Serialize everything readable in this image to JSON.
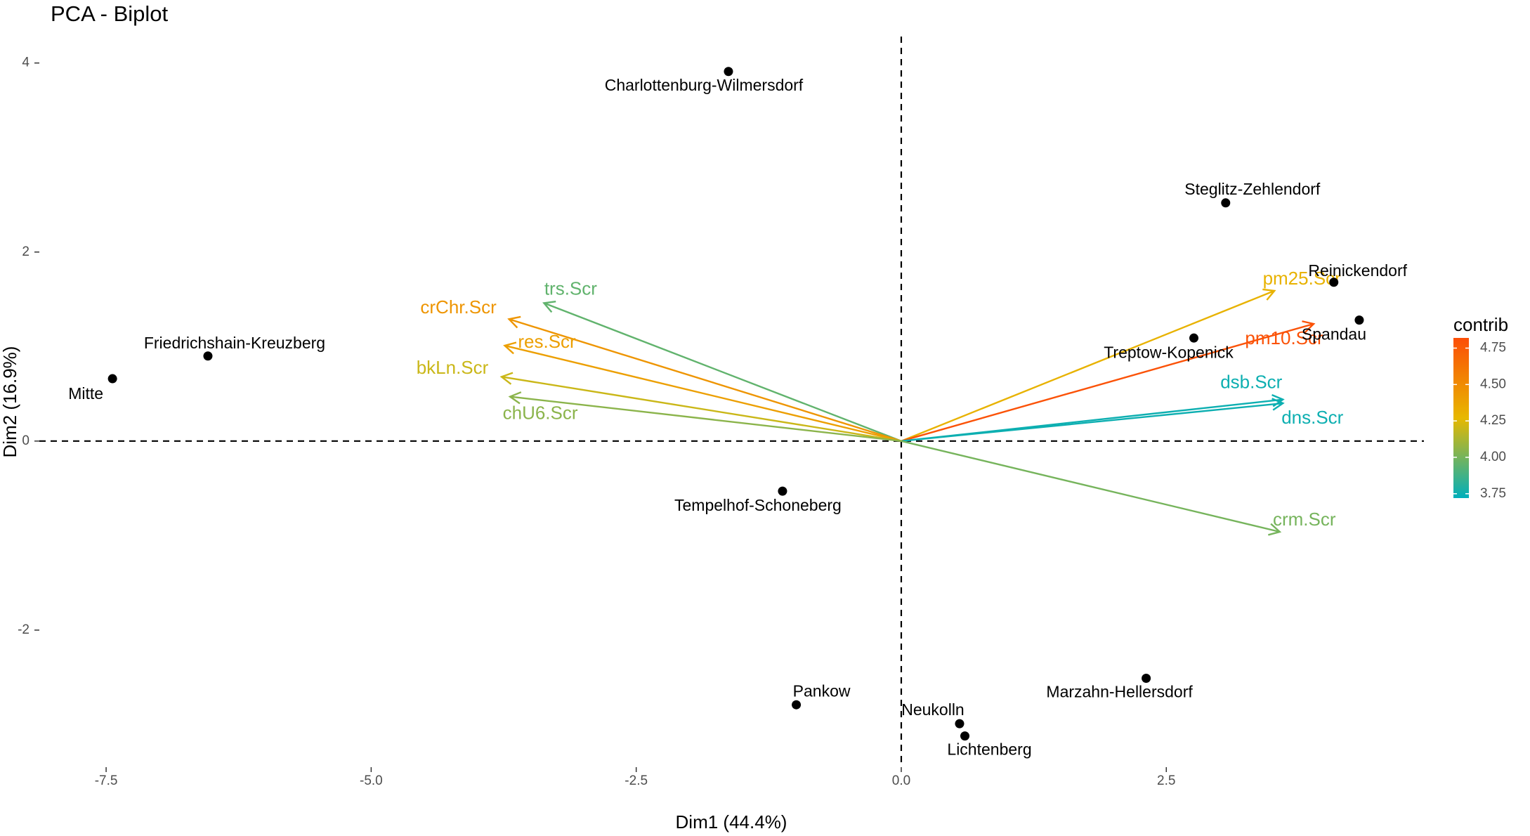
{
  "chart_data": {
    "type": "biplot",
    "title": "PCA - Biplot",
    "x_label": "Dim1 (44.4%)",
    "y_label": "Dim2 (16.9%)",
    "xlim": [
      -8.13,
      4.93
    ],
    "ylim": [
      -3.45,
      4.28
    ],
    "xticks": [
      -7.5,
      {
        "value": -5,
        "label": "-5.0"
      },
      -2.5,
      {
        "value": 0,
        "label": "0.0"
      },
      2.5
    ],
    "yticks": [
      -2,
      0,
      2,
      4
    ],
    "point_color": "#000000",
    "individuals": {
      "names": [
        "Charlottenburg-Wilmersdorf",
        "Steglitz-Zehlendorf",
        "Reinickendorf",
        "Spandau",
        "Treptow-Kopenick",
        "Friedrichshain-Kreuzberg",
        "Mitte",
        "Tempelhof-Schoneberg",
        "Marzahn-Hellersdorf",
        "Pankow",
        "Neukolln",
        "Lichtenberg"
      ],
      "x": [
        -1.63,
        3.06,
        4.08,
        4.32,
        2.76,
        -6.54,
        -7.44,
        -1.12,
        2.31,
        -0.99,
        0.55,
        0.6
      ],
      "y": [
        3.91,
        2.52,
        1.68,
        1.28,
        1.09,
        0.9,
        0.66,
        -0.53,
        -2.51,
        -2.79,
        -2.99,
        -3.12
      ]
    },
    "variables": {
      "names": [
        "pm25.Scr",
        "pm10.Scr",
        "dsb.Scr",
        "dns.Scr",
        "crm.Scr",
        "trs.Scr",
        "crChr.Scr",
        "res.Scr",
        "bkLn.Scr",
        "chU6.Scr"
      ],
      "x": [
        3.52,
        3.89,
        3.6,
        3.6,
        3.57,
        -3.37,
        -3.7,
        -3.74,
        -3.77,
        -3.69
      ],
      "y": [
        1.59,
        1.24,
        0.44,
        0.4,
        -0.96,
        1.46,
        1.29,
        1.01,
        0.68,
        0.47
      ],
      "contrib": [
        4.3,
        4.8,
        3.75,
        3.75,
        4.0,
        3.95,
        4.45,
        4.4,
        4.2,
        4.05
      ]
    },
    "legend": {
      "title": "contrib",
      "colors": [
        "#00AFBB",
        "#E7B800",
        "#FC4E07"
      ],
      "lim": [
        3.72,
        4.82
      ],
      "ticks": [
        3.75,
        {
          "value": 4,
          "label": "4.00"
        },
        4.25,
        {
          "value": 4.5,
          "label": "4.50"
        },
        4.75
      ]
    }
  }
}
